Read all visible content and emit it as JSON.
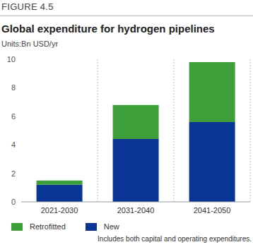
{
  "chart_data": {
    "type": "bar",
    "title": "Global expenditure for hydrogen pipelines",
    "subtitle": "Units:Bn USD/yr",
    "annotations": [
      "FIGURE 4.5",
      "Includes both capital and operating expenditures."
    ],
    "categories": [
      "2021-2030",
      "2031-2040",
      "2041-2050"
    ],
    "series": [
      {
        "name": "New",
        "color": "#0a3596",
        "values": [
          1.2,
          4.4,
          5.6
        ]
      },
      {
        "name": "Retrofitted",
        "color": "#3d9e3a",
        "values": [
          0.3,
          2.4,
          4.2
        ]
      }
    ],
    "ylim": [
      0,
      10
    ],
    "yticks": [
      0,
      2,
      4,
      6,
      8,
      10
    ],
    "stacked": true,
    "grid": true,
    "legend": "bottom"
  }
}
